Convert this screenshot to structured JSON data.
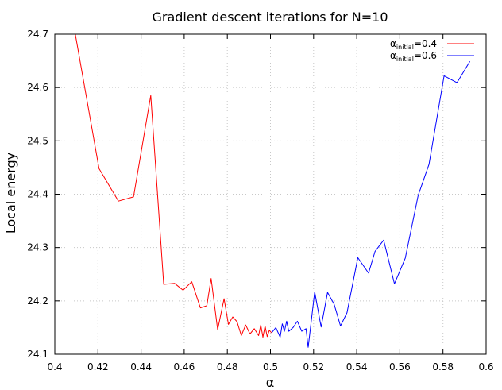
{
  "chart_data": {
    "type": "line",
    "title": "Gradient descent iterations for N=10",
    "xlabel": "α",
    "ylabel": "Local energy",
    "xlim": [
      0.4,
      0.6
    ],
    "ylim": [
      24.1,
      24.7
    ],
    "x_ticks": [
      "0.4",
      "0.42",
      "0.44",
      "0.46",
      "0.48",
      "0.5",
      "0.52",
      "0.54",
      "0.56",
      "0.58",
      "0.6"
    ],
    "y_ticks": [
      "24.1",
      "24.2",
      "24.3",
      "24.4",
      "24.5",
      "24.6",
      "24.7"
    ],
    "grid": true,
    "legend_position": "top-right",
    "series": [
      {
        "name_prefix": "α",
        "name_sub": "initial",
        "name_suffix": "=0.4",
        "color": "#ff0000",
        "x": [
          0.4095,
          0.4205,
          0.4295,
          0.4365,
          0.4445,
          0.4505,
          0.4555,
          0.4595,
          0.4635,
          0.4675,
          0.4705,
          0.4725,
          0.4755,
          0.4785,
          0.4805,
          0.4825,
          0.4845,
          0.4865,
          0.4885,
          0.4905,
          0.4925,
          0.4945,
          0.4955,
          0.4965,
          0.4975,
          0.4985,
          0.4995,
          0.5005
        ],
        "y": [
          24.7,
          24.448,
          24.387,
          24.395,
          24.585,
          24.231,
          24.233,
          24.22,
          24.236,
          24.187,
          24.191,
          24.242,
          24.146,
          24.204,
          24.156,
          24.17,
          24.161,
          24.135,
          24.155,
          24.138,
          24.148,
          24.135,
          24.155,
          24.132,
          24.153,
          24.133,
          24.145,
          24.14
        ]
      },
      {
        "name_prefix": "α",
        "name_sub": "initial",
        "name_suffix": "=0.6",
        "color": "#0000ff",
        "x": [
          0.5005,
          0.5025,
          0.5045,
          0.5055,
          0.5065,
          0.5075,
          0.5085,
          0.5105,
          0.5125,
          0.5145,
          0.5165,
          0.5175,
          0.5205,
          0.5235,
          0.5265,
          0.5295,
          0.5325,
          0.5355,
          0.5405,
          0.5455,
          0.5485,
          0.5525,
          0.5575,
          0.5625,
          0.5685,
          0.5735,
          0.5805,
          0.5865,
          0.5925
        ],
        "y": [
          24.14,
          24.15,
          24.132,
          24.157,
          24.143,
          24.162,
          24.143,
          24.15,
          24.162,
          24.143,
          24.148,
          24.113,
          24.217,
          24.151,
          24.216,
          24.194,
          24.153,
          24.178,
          24.281,
          24.252,
          24.293,
          24.314,
          24.232,
          24.28,
          24.398,
          24.456,
          24.622,
          24.609,
          24.649
        ]
      }
    ]
  }
}
